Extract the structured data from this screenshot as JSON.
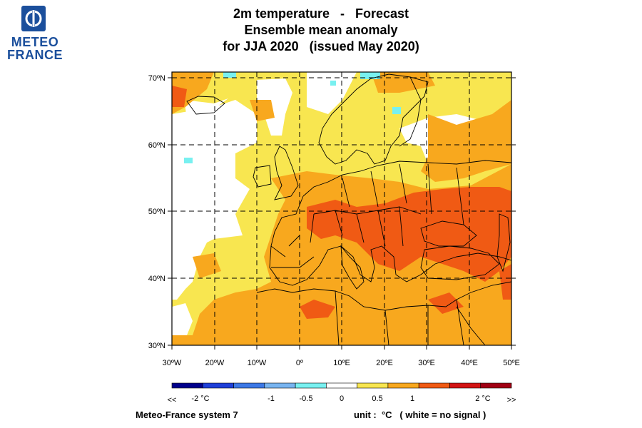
{
  "header": {
    "logo_line1": "METEO",
    "logo_line2": "FRANCE",
    "title_line1": "2m temperature   -   Forecast",
    "title_line2": "Ensemble mean anomaly",
    "title_line3": "for JJA 2020   (issued May 2020)"
  },
  "map": {
    "lat_ticks": [
      "70ºN",
      "60ºN",
      "50ºN",
      "40ºN",
      "30ºN"
    ],
    "lon_ticks": [
      "30ºW",
      "20ºW",
      "10ºW",
      "0º",
      "10ºE",
      "20ºE",
      "30ºE",
      "40ºE",
      "50ºE"
    ],
    "lat_range": [
      30,
      71
    ],
    "lon_range": [
      -30,
      50
    ]
  },
  "legend": {
    "labels": [
      "<<",
      "-2 °C",
      "-1",
      "-0.5",
      "0",
      "0.5",
      "1",
      "2 °C",
      ">>"
    ],
    "colors": [
      "#00008b",
      "#1e3fd8",
      "#3c78e6",
      "#78b4f0",
      "#78f0f0",
      "#ffffff",
      "#f8e650",
      "#f8a81e",
      "#f05a14",
      "#d21414",
      "#a00014"
    ]
  },
  "footer": {
    "model": "Meteo-France system 7",
    "unit": "unit :  °C   ( white = no signal )"
  },
  "colors": {
    "yellow": "#f8e650",
    "orange": "#f8a81e",
    "red": "#f05a14",
    "cyan": "#78f0f0",
    "logo_blue": "#1b4f9c"
  }
}
